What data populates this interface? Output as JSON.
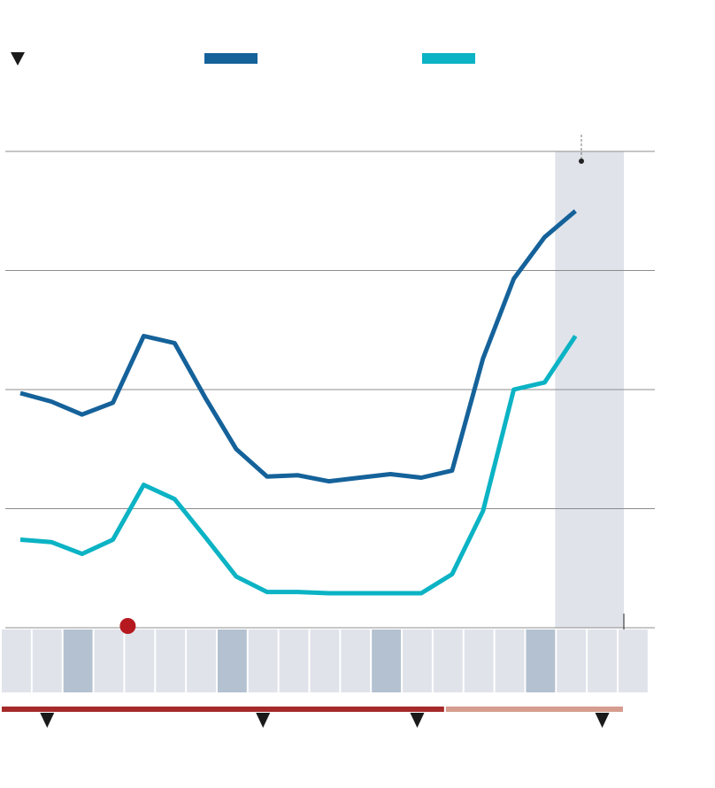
{
  "colors": {
    "series_dark": "#15629a",
    "series_light": "#0bb3c4",
    "gridline": "#8c8c8c",
    "highlight_band": "#e0e3ea",
    "timeline_cell": "#e0e3ea",
    "timeline_cell_marked": "#b3c1d0",
    "marker_dot": "#b5191f",
    "bar_dark": "#a52a2a",
    "bar_light": "#d69c8f",
    "triangle": "#1a1a1a"
  },
  "legend": {
    "triangle_icon": "down-triangle-icon",
    "swatches": [
      "series-dark-swatch",
      "series-light-swatch"
    ]
  },
  "chart_data": {
    "type": "line",
    "x": [
      1,
      2,
      3,
      4,
      5,
      6,
      7,
      8,
      9,
      10,
      11,
      12,
      13,
      14,
      15,
      16,
      17,
      18,
      19
    ],
    "ylim": [
      0,
      4
    ],
    "grid": true,
    "yticks": [
      0,
      1,
      2,
      3,
      4
    ],
    "series": [
      {
        "values": [
          1.97,
          1.9,
          1.79,
          1.89,
          2.45,
          2.39,
          1.93,
          1.5,
          1.27,
          1.28,
          1.23,
          1.26,
          1.29,
          1.26,
          1.32,
          2.26,
          2.93,
          3.28,
          3.5
        ]
      },
      {
        "values": [
          0.74,
          0.72,
          0.62,
          0.74,
          1.2,
          1.08,
          0.76,
          0.43,
          0.3,
          0.3,
          0.29,
          0.29,
          0.29,
          0.29,
          0.45,
          0.98,
          2.0,
          2.06,
          2.45
        ]
      }
    ],
    "highlight_range": [
      18,
      20
    ],
    "timeline": {
      "cells": 21,
      "marked_cells": [
        2,
        7,
        12,
        17
      ],
      "dot_cell": 4
    },
    "bars": [
      {
        "from": 0,
        "to": 14.4,
        "tone": "dark"
      },
      {
        "from": 14.4,
        "to": 20.2,
        "tone": "light"
      }
    ],
    "triangle_markers": [
      1.5,
      8.5,
      13.5,
      19.5
    ]
  }
}
